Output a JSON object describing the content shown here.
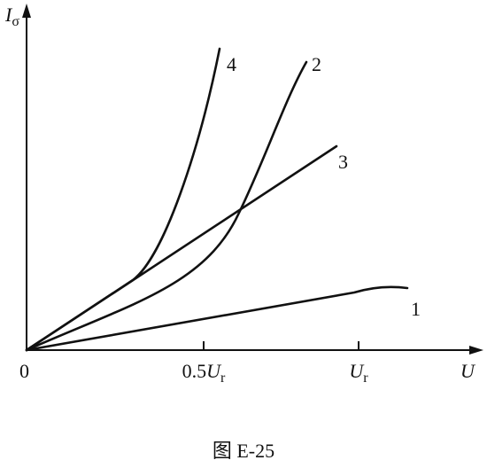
{
  "axes": {
    "y_label": "I",
    "y_label_sub": "σ",
    "x_label": "U",
    "origin": "0",
    "x_ticks": [
      {
        "prefix": "0.5",
        "symbol": "U",
        "sub": "r"
      },
      {
        "symbol": "U",
        "sub": "r"
      }
    ]
  },
  "curves": [
    {
      "label": "1"
    },
    {
      "label": "2"
    },
    {
      "label": "3"
    },
    {
      "label": "4"
    }
  ],
  "caption": "图 E-25"
}
